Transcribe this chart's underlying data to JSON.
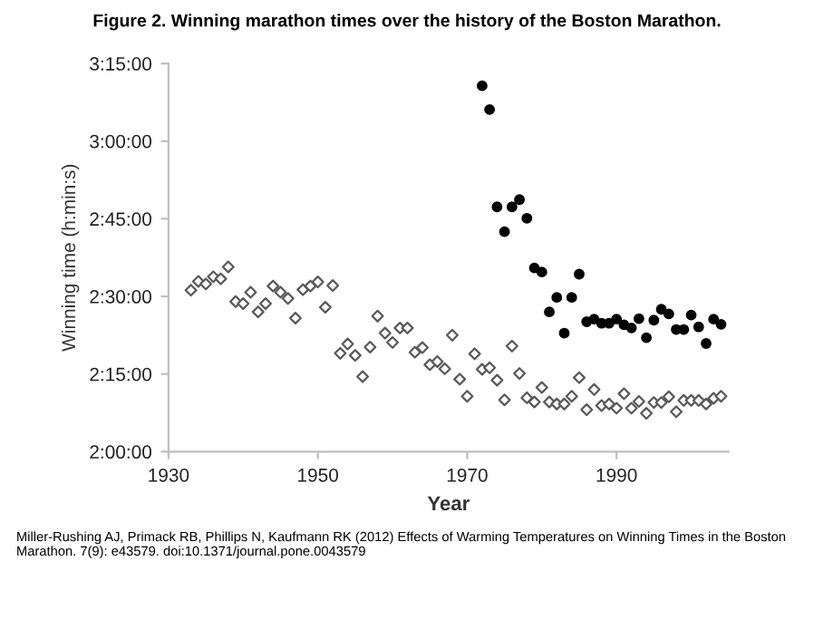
{
  "chart_data": {
    "type": "scatter",
    "title": "Figure 2. Winning marathon times over the history of the Boston Marathon.",
    "xlabel": "Year",
    "ylabel": "Winning time (h:min:s)",
    "xlim": [
      1930,
      2005
    ],
    "xticks": [
      1930,
      1950,
      1970,
      1990
    ],
    "ylim": [
      120,
      195
    ],
    "yticks": [
      {
        "value": 120,
        "label": "2:00:00"
      },
      {
        "value": 135,
        "label": "2:15:00"
      },
      {
        "value": 150,
        "label": "2:30:00"
      },
      {
        "value": 165,
        "label": "2:45:00"
      },
      {
        "value": 180,
        "label": "3:00:00"
      },
      {
        "value": 195,
        "label": "3:15:00"
      }
    ],
    "grid": false,
    "series": [
      {
        "color": "#595959",
        "marker": "diamond",
        "x": [
          1933,
          1934,
          1935,
          1936,
          1937,
          1938,
          1939,
          1940,
          1941,
          1942,
          1943,
          1944,
          1945,
          1946,
          1947,
          1948,
          1949,
          1950,
          1951,
          1952,
          1953,
          1954,
          1955,
          1956,
          1957,
          1958,
          1959,
          1960,
          1961,
          1962,
          1963,
          1964,
          1965,
          1966,
          1967,
          1968,
          1969,
          1970,
          1971,
          1972,
          1973,
          1974,
          1975,
          1976,
          1977,
          1978,
          1979,
          1980,
          1981,
          1982,
          1983,
          1984,
          1985,
          1986,
          1987,
          1988,
          1989,
          1990,
          1991,
          1992,
          1993,
          1994,
          1995,
          1996,
          1997,
          1998,
          1999,
          2000,
          2001,
          2002,
          2003,
          2004
        ],
        "values": [
          151.2,
          152.9,
          152.4,
          153.8,
          153.4,
          155.7,
          149.0,
          148.6,
          150.8,
          147.0,
          148.6,
          152.0,
          150.8,
          149.6,
          145.8,
          151.3,
          152.0,
          152.8,
          147.9,
          152.1,
          139.0,
          140.8,
          138.6,
          134.5,
          140.2,
          146.2,
          142.9,
          141.1,
          143.9,
          143.9,
          139.2,
          140.1,
          136.8,
          137.4,
          136.0,
          142.5,
          134.0,
          130.7,
          138.9,
          135.9,
          136.2,
          133.8,
          130.0,
          140.4,
          135.1,
          130.4,
          129.6,
          132.4,
          129.6,
          129.2,
          129.2,
          130.7,
          134.3,
          128.1,
          132.0,
          128.9,
          129.2,
          128.4,
          131.2,
          128.4,
          129.7,
          127.4,
          129.5,
          129.5,
          130.6,
          127.7,
          129.9,
          129.9,
          129.9,
          129.2,
          130.3,
          130.7
        ]
      },
      {
        "color": "#000000",
        "marker": "circle",
        "x": [
          1972,
          1973,
          1974,
          1975,
          1976,
          1977,
          1978,
          1979,
          1980,
          1981,
          1982,
          1983,
          1984,
          1985,
          1986,
          1987,
          1988,
          1989,
          1990,
          1991,
          1992,
          1993,
          1994,
          1995,
          1996,
          1997,
          1998,
          1999,
          2000,
          2001,
          2002,
          2003,
          2004
        ],
        "values": [
          190.7,
          186.1,
          167.3,
          162.5,
          167.3,
          168.7,
          165.1,
          155.5,
          154.7,
          147.0,
          149.8,
          142.9,
          149.8,
          154.3,
          145.1,
          145.6,
          144.8,
          144.8,
          145.6,
          144.5,
          143.9,
          145.7,
          142.0,
          145.4,
          147.5,
          146.6,
          143.6,
          143.6,
          146.4,
          144.1,
          140.9,
          145.6,
          144.6
        ]
      }
    ],
    "annotations": [
      "Miller-Rushing AJ, Primack RB, Phillips N, Kaufmann RK (2012) Effects of Warming Temperatures on Winning Times in the Boston Marathon. 7(9): e43579. doi:10.1371/journal.pone.0043579"
    ]
  }
}
